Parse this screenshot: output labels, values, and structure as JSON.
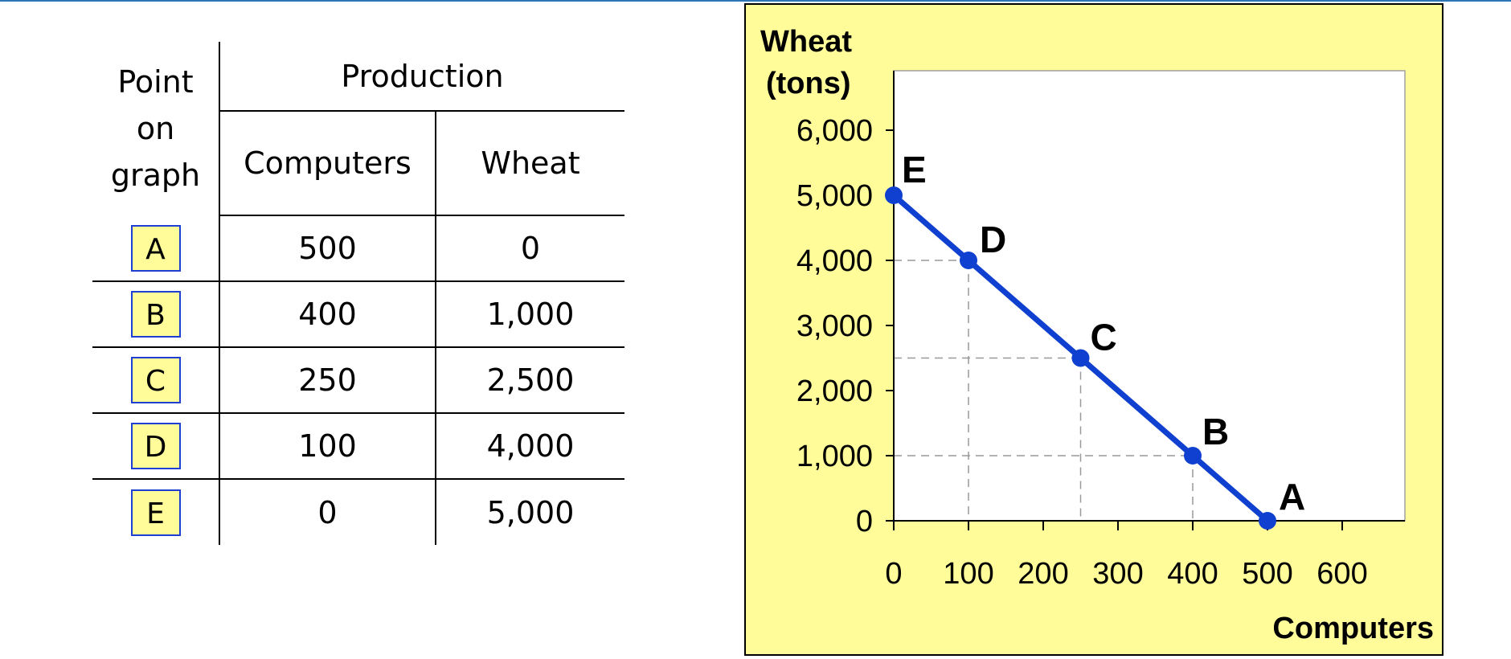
{
  "table": {
    "header_point": [
      "Point",
      "on",
      "graph"
    ],
    "header_production": "Production",
    "header_computers": "Computers",
    "header_wheat": "Wheat",
    "rows": [
      {
        "point": "A",
        "computers": "500",
        "wheat": "0"
      },
      {
        "point": "B",
        "computers": "400",
        "wheat": "1,000"
      },
      {
        "point": "C",
        "computers": "250",
        "wheat": "2,500"
      },
      {
        "point": "D",
        "computers": "100",
        "wheat": "4,000"
      },
      {
        "point": "E",
        "computers": "0",
        "wheat": "5,000"
      }
    ]
  },
  "chart_data": {
    "type": "line",
    "ylabel_lines": [
      "Wheat",
      "(tons)"
    ],
    "xlabel": "Computers",
    "xlim": [
      0,
      680
    ],
    "ylim": [
      0,
      6000
    ],
    "x_ticks": [
      0,
      100,
      200,
      300,
      400,
      500,
      600
    ],
    "x_tick_labels": [
      "0",
      "100",
      "200",
      "300",
      "400",
      "500",
      "600"
    ],
    "y_ticks": [
      0,
      1000,
      2000,
      3000,
      4000,
      5000,
      6000
    ],
    "y_tick_labels": [
      "0",
      "1,000",
      "2,000",
      "3,000",
      "4,000",
      "5,000",
      "6,000"
    ],
    "grid": false,
    "dashed_guides": true,
    "points": [
      {
        "label": "E",
        "x": 0,
        "y": 5000
      },
      {
        "label": "D",
        "x": 100,
        "y": 4000
      },
      {
        "label": "C",
        "x": 250,
        "y": 2500
      },
      {
        "label": "B",
        "x": 400,
        "y": 1000
      },
      {
        "label": "A",
        "x": 500,
        "y": 0
      }
    ],
    "colors": {
      "background": "#fffc99",
      "plot_area": "#ffffff",
      "line": "#1040d0",
      "guide": "#999999"
    }
  }
}
